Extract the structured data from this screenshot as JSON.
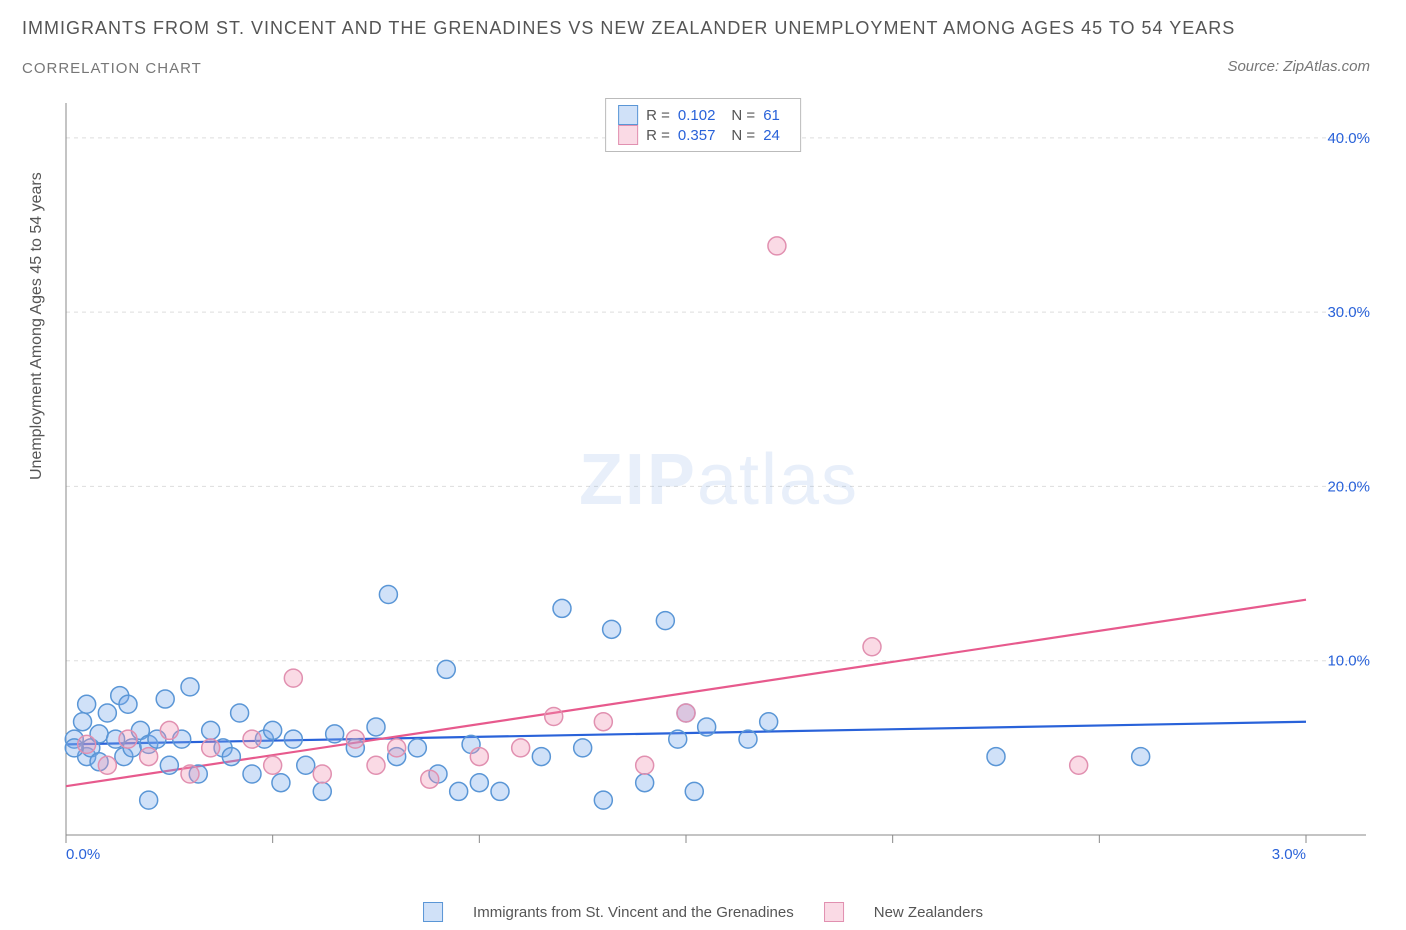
{
  "title": "IMMIGRANTS FROM ST. VINCENT AND THE GRENADINES VS NEW ZEALANDER UNEMPLOYMENT AMONG AGES 45 TO 54 YEARS",
  "subtitle": "CORRELATION CHART",
  "source": "Source: ZipAtlas.com",
  "y_axis_label": "Unemployment Among Ages 45 to 54 years",
  "watermark_zip": "ZIP",
  "watermark_atlas": "atlas",
  "chart": {
    "type": "scatter",
    "xlim": [
      0.0,
      3.0
    ],
    "ylim": [
      0.0,
      42.0
    ],
    "xticks": [
      0.0,
      0.5,
      1.0,
      1.5,
      2.0,
      2.5,
      3.0
    ],
    "xtick_labels": [
      "0.0%",
      "",
      "",
      "",
      "",
      "",
      "3.0%"
    ],
    "yticks": [
      10.0,
      20.0,
      30.0,
      40.0
    ],
    "ytick_labels": [
      "10.0%",
      "20.0%",
      "30.0%",
      "40.0%"
    ],
    "background_color": "#ffffff",
    "grid_color": "#dddddd",
    "grid_dash": "4,4",
    "minor_tick_color": "#999999",
    "axis_color": "#888888",
    "tick_label_color": "#2962d9",
    "marker_radius": 9,
    "marker_stroke_width": 1.5,
    "line_width": 2.2,
    "series": [
      {
        "name": "Immigrants from St. Vincent and the Grenadines",
        "fill_color": "rgba(120,170,235,0.35)",
        "stroke_color": "#5a96d6",
        "line_color": "#2962d9",
        "r_value": "0.102",
        "n_value": "61",
        "trend": {
          "x1": 0.0,
          "y1": 5.2,
          "x2": 3.0,
          "y2": 6.5
        },
        "points": [
          [
            0.02,
            5.5
          ],
          [
            0.04,
            6.5
          ],
          [
            0.05,
            4.5
          ],
          [
            0.05,
            7.5
          ],
          [
            0.06,
            5.0
          ],
          [
            0.08,
            5.8
          ],
          [
            0.08,
            4.2
          ],
          [
            0.1,
            7.0
          ],
          [
            0.12,
            5.5
          ],
          [
            0.13,
            8.0
          ],
          [
            0.14,
            4.5
          ],
          [
            0.15,
            7.5
          ],
          [
            0.16,
            5.0
          ],
          [
            0.18,
            6.0
          ],
          [
            0.2,
            5.2
          ],
          [
            0.2,
            2.0
          ],
          [
            0.22,
            5.5
          ],
          [
            0.24,
            7.8
          ],
          [
            0.25,
            4.0
          ],
          [
            0.28,
            5.5
          ],
          [
            0.3,
            8.5
          ],
          [
            0.32,
            3.5
          ],
          [
            0.35,
            6.0
          ],
          [
            0.38,
            5.0
          ],
          [
            0.4,
            4.5
          ],
          [
            0.42,
            7.0
          ],
          [
            0.45,
            3.5
          ],
          [
            0.48,
            5.5
          ],
          [
            0.5,
            6.0
          ],
          [
            0.52,
            3.0
          ],
          [
            0.55,
            5.5
          ],
          [
            0.58,
            4.0
          ],
          [
            0.62,
            2.5
          ],
          [
            0.65,
            5.8
          ],
          [
            0.7,
            5.0
          ],
          [
            0.75,
            6.2
          ],
          [
            0.78,
            13.8
          ],
          [
            0.8,
            4.5
          ],
          [
            0.85,
            5.0
          ],
          [
            0.9,
            3.5
          ],
          [
            0.92,
            9.5
          ],
          [
            0.95,
            2.5
          ],
          [
            0.98,
            5.2
          ],
          [
            1.0,
            3.0
          ],
          [
            1.05,
            2.5
          ],
          [
            1.15,
            4.5
          ],
          [
            1.2,
            13.0
          ],
          [
            1.25,
            5.0
          ],
          [
            1.3,
            2.0
          ],
          [
            1.32,
            11.8
          ],
          [
            1.4,
            3.0
          ],
          [
            1.45,
            12.3
          ],
          [
            1.48,
            5.5
          ],
          [
            1.5,
            7.0
          ],
          [
            1.52,
            2.5
          ],
          [
            1.55,
            6.2
          ],
          [
            1.65,
            5.5
          ],
          [
            1.7,
            6.5
          ],
          [
            2.25,
            4.5
          ],
          [
            2.6,
            4.5
          ],
          [
            0.02,
            5.0
          ]
        ]
      },
      {
        "name": "New Zealanders",
        "fill_color": "rgba(240,150,180,0.35)",
        "stroke_color": "#e190b0",
        "line_color": "#e75a8d",
        "r_value": "0.357",
        "n_value": "24",
        "trend": {
          "x1": 0.0,
          "y1": 2.8,
          "x2": 3.0,
          "y2": 13.5
        },
        "points": [
          [
            0.05,
            5.2
          ],
          [
            0.1,
            4.0
          ],
          [
            0.15,
            5.5
          ],
          [
            0.2,
            4.5
          ],
          [
            0.25,
            6.0
          ],
          [
            0.3,
            3.5
          ],
          [
            0.35,
            5.0
          ],
          [
            0.45,
            5.5
          ],
          [
            0.5,
            4.0
          ],
          [
            0.55,
            9.0
          ],
          [
            0.62,
            3.5
          ],
          [
            0.7,
            5.5
          ],
          [
            0.75,
            4.0
          ],
          [
            0.8,
            5.0
          ],
          [
            0.88,
            3.2
          ],
          [
            1.0,
            4.5
          ],
          [
            1.1,
            5.0
          ],
          [
            1.18,
            6.8
          ],
          [
            1.3,
            6.5
          ],
          [
            1.4,
            4.0
          ],
          [
            1.5,
            7.0
          ],
          [
            1.72,
            33.8
          ],
          [
            1.95,
            10.8
          ],
          [
            2.45,
            4.0
          ]
        ]
      }
    ]
  },
  "stats_labels": {
    "r": "R =",
    "n": "N ="
  },
  "legend_series1": "Immigrants from St. Vincent and the Grenadines",
  "legend_series2": "New Zealanders"
}
